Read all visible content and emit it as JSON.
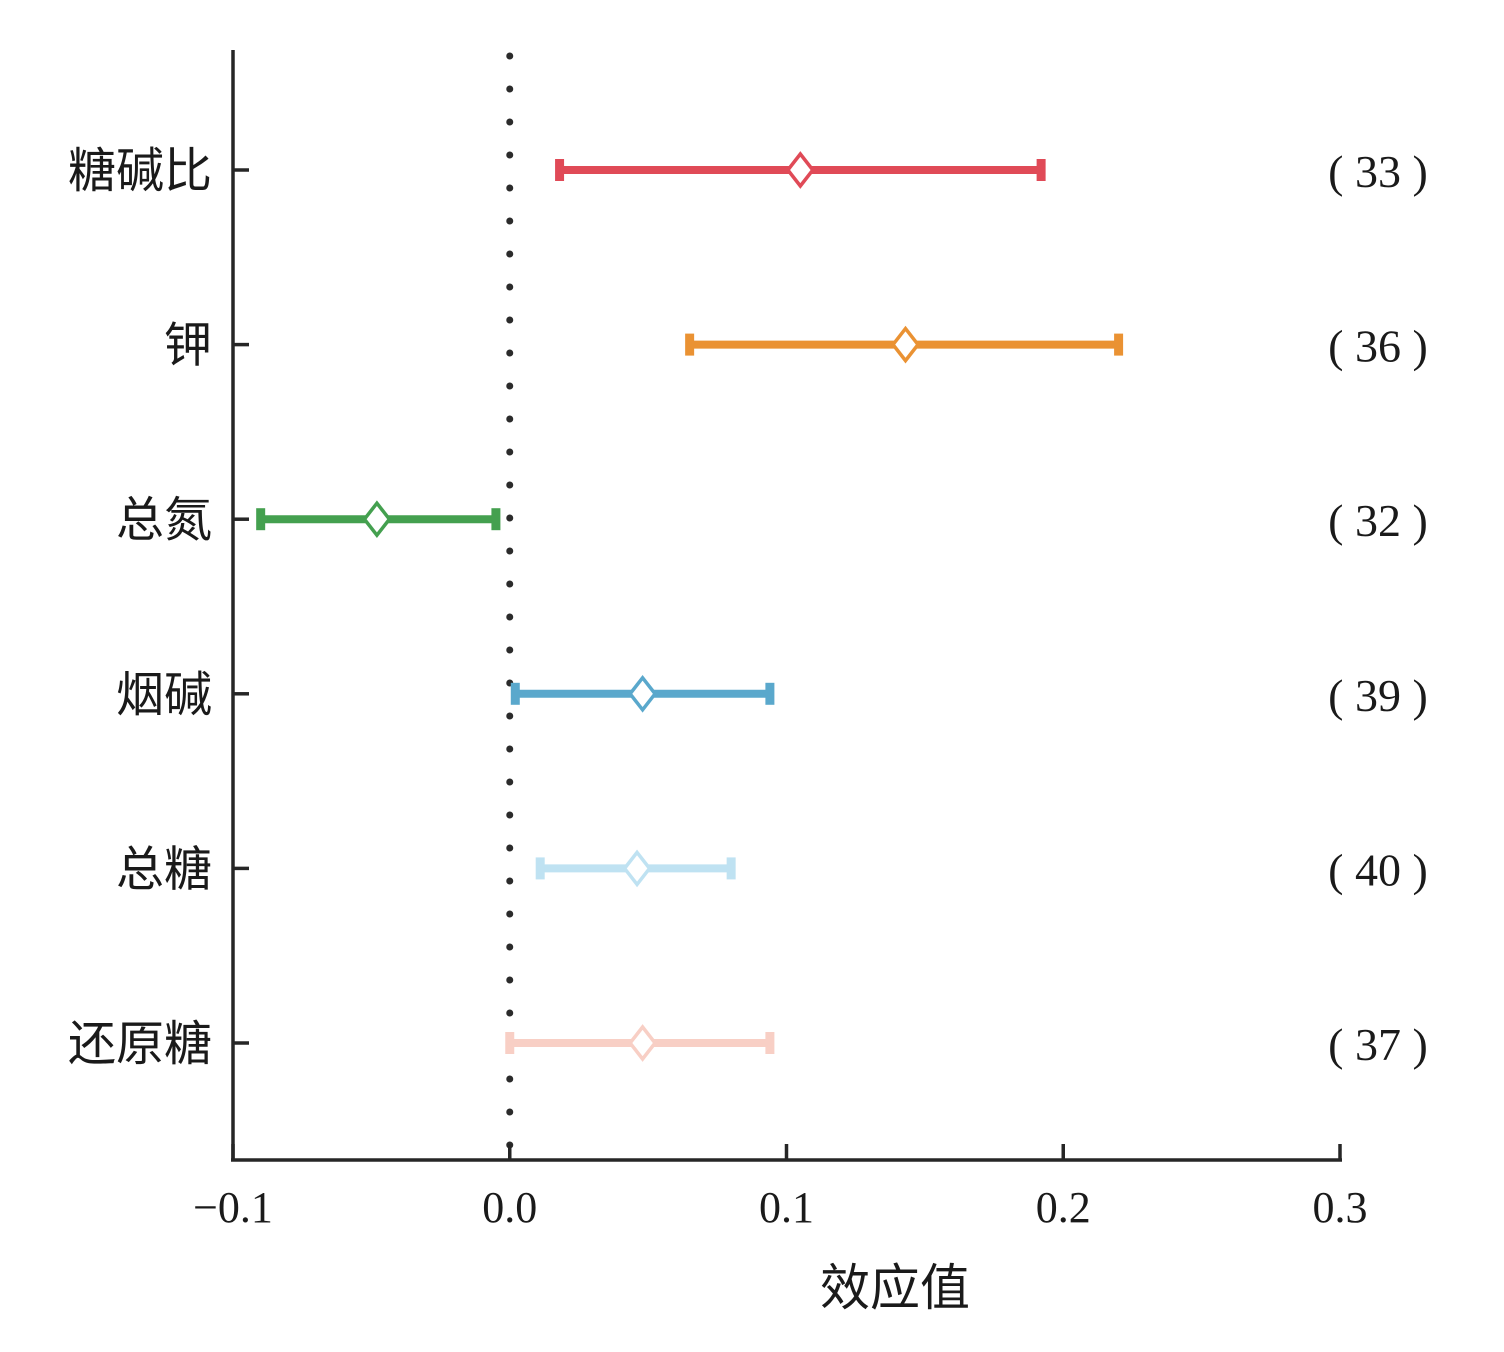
{
  "chart_data": {
    "type": "forest",
    "title": "",
    "xlabel": "效应值",
    "ylabel": "",
    "xlim": [
      -0.1,
      0.3
    ],
    "xticks": [
      -0.1,
      0.0,
      0.1,
      0.2,
      0.3
    ],
    "xtick_labels": [
      "−0.1",
      "0.0",
      "0.1",
      "0.2",
      "0.3"
    ],
    "reference_line": {
      "x": 0.0,
      "style": "dotted"
    },
    "grid": false,
    "rows": [
      {
        "label": "糖碱比",
        "estimate": 0.105,
        "ci_low": 0.018,
        "ci_high": 0.192,
        "n_label": "( 33 )",
        "color": "#e04a57"
      },
      {
        "label": "钾",
        "estimate": 0.143,
        "ci_low": 0.065,
        "ci_high": 0.22,
        "n_label": "( 36 )",
        "color": "#ea9233"
      },
      {
        "label": "总氮",
        "estimate": -0.048,
        "ci_low": -0.09,
        "ci_high": -0.005,
        "n_label": "( 32 )",
        "color": "#44a04f"
      },
      {
        "label": "烟碱",
        "estimate": 0.048,
        "ci_low": 0.002,
        "ci_high": 0.094,
        "n_label": "( 39 )",
        "color": "#5aa8cc"
      },
      {
        "label": "总糖",
        "estimate": 0.046,
        "ci_low": 0.011,
        "ci_high": 0.08,
        "n_label": "( 40 )",
        "color": "#bfe2f2"
      },
      {
        "label": "还原糖",
        "estimate": 0.048,
        "ci_low": 0.0,
        "ci_high": 0.094,
        "n_label": "( 37 )",
        "color": "#f8cfc5"
      }
    ]
  }
}
